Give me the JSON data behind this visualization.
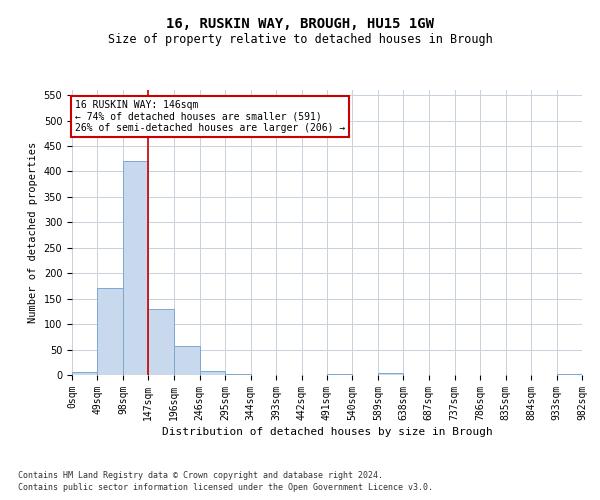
{
  "title": "16, RUSKIN WAY, BROUGH, HU15 1GW",
  "subtitle": "Size of property relative to detached houses in Brough",
  "xlabel": "Distribution of detached houses by size in Brough",
  "ylabel": "Number of detached properties",
  "bin_edges": [
    0,
    49,
    98,
    147,
    196,
    246,
    295,
    344,
    393,
    442,
    491,
    540,
    589,
    638,
    687,
    737,
    786,
    835,
    884,
    933,
    982
  ],
  "bar_heights": [
    5,
    170,
    420,
    130,
    57,
    8,
    2,
    0,
    0,
    0,
    2,
    0,
    3,
    0,
    0,
    0,
    0,
    0,
    0,
    2
  ],
  "bar_color": "#c8d9ee",
  "bar_edge_color": "#7aa8d2",
  "property_size": 146,
  "property_line_color": "#cc0000",
  "annotation_line1": "16 RUSKIN WAY: 146sqm",
  "annotation_line2": "← 74% of detached houses are smaller (591)",
  "annotation_line3": "26% of semi-detached houses are larger (206) →",
  "annotation_box_color": "#cc0000",
  "grid_color": "#c8d2dc",
  "ylim": [
    0,
    560
  ],
  "yticks": [
    0,
    50,
    100,
    150,
    200,
    250,
    300,
    350,
    400,
    450,
    500,
    550
  ],
  "footnote1": "Contains HM Land Registry data © Crown copyright and database right 2024.",
  "footnote2": "Contains public sector information licensed under the Open Government Licence v3.0.",
  "background_color": "#ffffff",
  "title_fontsize": 10,
  "subtitle_fontsize": 8.5,
  "ylabel_fontsize": 7.5,
  "xlabel_fontsize": 8,
  "tick_fontsize": 7,
  "annotation_fontsize": 7,
  "footnote_fontsize": 6
}
